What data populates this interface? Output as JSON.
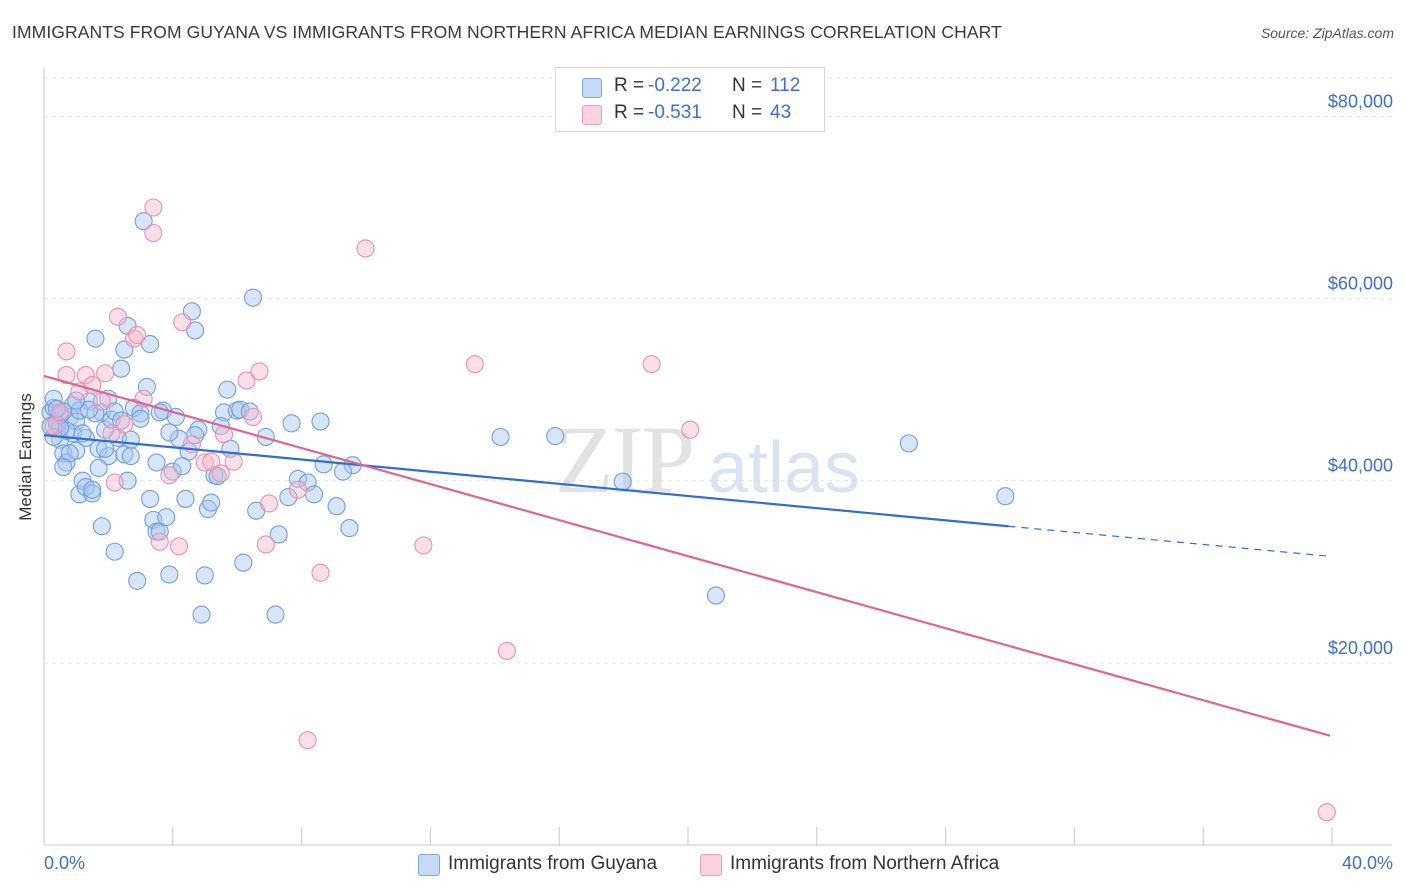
{
  "title": "IMMIGRANTS FROM GUYANA VS IMMIGRANTS FROM NORTHERN AFRICA MEDIAN EARNINGS CORRELATION CHART",
  "source": "Source: ZipAtlas.com",
  "watermark": {
    "zip": "ZIP",
    "atlas": "atlas"
  },
  "legend_top": [
    {
      "r_label": "R =",
      "r_value": "-0.222",
      "n_label": "N =",
      "n_value": "112",
      "color": "#a7c6f0"
    },
    {
      "r_label": "R =",
      "r_value": "-0.531",
      "n_label": "N =",
      "n_value": "43",
      "color": "#f5b7cb"
    }
  ],
  "legend_bottom": [
    {
      "label": "Immigrants from Guyana",
      "color": "#a7c6f0"
    },
    {
      "label": "Immigrants from Northern Africa",
      "color": "#f5b7cb"
    }
  ],
  "chart_data": {
    "type": "scatter",
    "ylabel": "Median Earnings",
    "xlabel": "",
    "x_tick_labels": {
      "left": "0.0%",
      "right": "40.0%"
    },
    "xlim": [
      0,
      40
    ],
    "ylim": [
      0,
      84000
    ],
    "y_ticks": [
      {
        "value": 20000,
        "label": "$20,000"
      },
      {
        "value": 40000,
        "label": "$40,000"
      },
      {
        "value": 60000,
        "label": "$60,000"
      },
      {
        "value": 80000,
        "label": "$80,000"
      }
    ],
    "series": [
      {
        "name": "Immigrants from Guyana",
        "color": "#a7c6f0",
        "stroke": "#6f9fe0",
        "line_color": "#2f6fd0",
        "trend": {
          "x0": 0,
          "y0": 45000,
          "x1": 30,
          "y1": 35000,
          "dash_x1": 40,
          "dash_y1": 31700
        },
        "points": [
          [
            0.2,
            47500
          ],
          [
            0.3,
            48000
          ],
          [
            0.4,
            46500
          ],
          [
            0.5,
            44500
          ],
          [
            0.6,
            43000
          ],
          [
            0.7,
            42000
          ],
          [
            0.8,
            47000
          ],
          [
            0.3,
            49000
          ],
          [
            0.5,
            47200
          ],
          [
            0.9,
            45200
          ],
          [
            1.0,
            46500
          ],
          [
            1.1,
            38500
          ],
          [
            1.2,
            40000
          ],
          [
            1.3,
            39300
          ],
          [
            1.4,
            48700
          ],
          [
            1.5,
            38600
          ],
          [
            1.6,
            55600
          ],
          [
            1.7,
            43500
          ],
          [
            1.8,
            47500
          ],
          [
            1.9,
            45600
          ],
          [
            2.0,
            49000
          ],
          [
            2.1,
            46700
          ],
          [
            2.2,
            32200
          ],
          [
            2.3,
            44700
          ],
          [
            2.4,
            52300
          ],
          [
            2.5,
            42900
          ],
          [
            2.6,
            57000
          ],
          [
            2.7,
            42700
          ],
          [
            2.8,
            48000
          ],
          [
            2.9,
            29000
          ],
          [
            3.0,
            47400
          ],
          [
            3.2,
            50300
          ],
          [
            3.3,
            55000
          ],
          [
            3.4,
            35700
          ],
          [
            3.5,
            34400
          ],
          [
            3.6,
            34400
          ],
          [
            3.7,
            47700
          ],
          [
            3.8,
            36000
          ],
          [
            3.9,
            29700
          ],
          [
            4.0,
            41000
          ],
          [
            4.2,
            44600
          ],
          [
            4.4,
            38000
          ],
          [
            4.5,
            43200
          ],
          [
            4.6,
            58600
          ],
          [
            4.7,
            56500
          ],
          [
            4.8,
            45600
          ],
          [
            4.9,
            25300
          ],
          [
            5.0,
            29600
          ],
          [
            5.1,
            36900
          ],
          [
            5.2,
            37600
          ],
          [
            5.3,
            40600
          ],
          [
            5.4,
            40500
          ],
          [
            5.6,
            47500
          ],
          [
            5.7,
            50000
          ],
          [
            5.8,
            43500
          ],
          [
            6.0,
            47700
          ],
          [
            6.1,
            47800
          ],
          [
            6.2,
            31000
          ],
          [
            6.5,
            60100
          ],
          [
            6.6,
            36700
          ],
          [
            6.9,
            44800
          ],
          [
            7.2,
            25300
          ],
          [
            7.3,
            34100
          ],
          [
            7.6,
            38200
          ],
          [
            7.7,
            46300
          ],
          [
            7.9,
            40200
          ],
          [
            8.2,
            39800
          ],
          [
            8.4,
            38500
          ],
          [
            8.6,
            46500
          ],
          [
            8.7,
            41800
          ],
          [
            9.1,
            37200
          ],
          [
            9.5,
            34800
          ],
          [
            9.6,
            41700
          ],
          [
            9.3,
            41000
          ],
          [
            3.1,
            68500
          ],
          [
            2.5,
            54400
          ],
          [
            1.8,
            35000
          ],
          [
            0.9,
            48300
          ],
          [
            1.3,
            44700
          ],
          [
            2.0,
            42700
          ],
          [
            4.1,
            47000
          ],
          [
            3.5,
            42000
          ],
          [
            1.0,
            43300
          ],
          [
            0.6,
            47600
          ],
          [
            1.5,
            39000
          ],
          [
            2.7,
            44500
          ],
          [
            0.4,
            46200
          ],
          [
            0.7,
            45500
          ],
          [
            1.1,
            47700
          ],
          [
            1.6,
            47400
          ],
          [
            14.2,
            44800
          ],
          [
            15.9,
            44900
          ],
          [
            18.0,
            39900
          ],
          [
            20.9,
            27400
          ],
          [
            26.9,
            44100
          ],
          [
            29.9,
            38300
          ],
          [
            0.8,
            43000
          ],
          [
            1.2,
            45200
          ],
          [
            2.2,
            47600
          ],
          [
            3.0,
            46800
          ],
          [
            3.9,
            45300
          ],
          [
            4.3,
            41600
          ],
          [
            5.5,
            46000
          ],
          [
            6.4,
            47600
          ],
          [
            0.5,
            45800
          ],
          [
            1.7,
            41400
          ],
          [
            2.4,
            46600
          ],
          [
            3.3,
            38000
          ],
          [
            0.3,
            44800
          ],
          [
            0.2,
            46000
          ],
          [
            1.4,
            47800
          ],
          [
            2.6,
            40000
          ],
          [
            0.6,
            41500
          ],
          [
            1.0,
            48800
          ],
          [
            3.6,
            47500
          ],
          [
            4.7,
            45000
          ],
          [
            0.4,
            47900
          ],
          [
            1.9,
            43500
          ]
        ]
      },
      {
        "name": "Immigrants from Northern Africa",
        "color": "#f5b7cb",
        "stroke": "#ec8fad",
        "line_color": "#e0658f",
        "trend": {
          "x0": 0,
          "y0": 51500,
          "x1": 40,
          "y1": 12000
        },
        "points": [
          [
            0.3,
            46000
          ],
          [
            0.5,
            47500
          ],
          [
            0.7,
            51600
          ],
          [
            0.7,
            54200
          ],
          [
            1.1,
            49800
          ],
          [
            1.3,
            51600
          ],
          [
            1.5,
            50500
          ],
          [
            1.8,
            48700
          ],
          [
            1.9,
            51800
          ],
          [
            2.1,
            45200
          ],
          [
            2.2,
            39800
          ],
          [
            2.3,
            58000
          ],
          [
            2.5,
            46200
          ],
          [
            2.8,
            55600
          ],
          [
            2.9,
            56000
          ],
          [
            3.1,
            49000
          ],
          [
            3.4,
            70000
          ],
          [
            3.4,
            67200
          ],
          [
            3.6,
            33300
          ],
          [
            3.9,
            40600
          ],
          [
            4.2,
            32800
          ],
          [
            4.3,
            57400
          ],
          [
            4.6,
            44000
          ],
          [
            5.0,
            42000
          ],
          [
            5.2,
            42100
          ],
          [
            5.5,
            40800
          ],
          [
            5.6,
            45100
          ],
          [
            5.9,
            42100
          ],
          [
            6.3,
            51000
          ],
          [
            6.5,
            47000
          ],
          [
            6.7,
            52000
          ],
          [
            6.9,
            33000
          ],
          [
            7.0,
            37500
          ],
          [
            7.9,
            39000
          ],
          [
            8.2,
            11500
          ],
          [
            8.6,
            29900
          ],
          [
            10.0,
            65500
          ],
          [
            11.8,
            32900
          ],
          [
            13.4,
            52800
          ],
          [
            14.4,
            21300
          ],
          [
            18.9,
            52800
          ],
          [
            20.1,
            45600
          ],
          [
            39.9,
            3600
          ]
        ]
      }
    ]
  }
}
